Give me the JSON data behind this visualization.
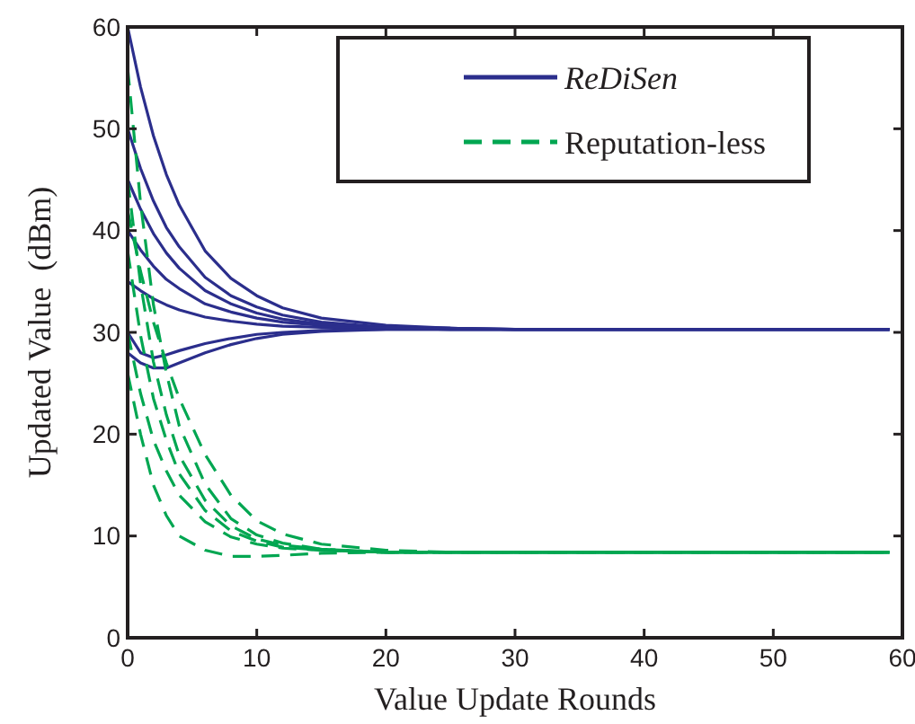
{
  "chart_data": {
    "type": "line",
    "xlabel": "Value Update Rounds",
    "ylabel": "Updated Value  (dBm)",
    "x": [
      0,
      1,
      2,
      3,
      4,
      6,
      8,
      10,
      12,
      15,
      20,
      25,
      30,
      59
    ],
    "xlim": [
      0,
      60
    ],
    "xticks": [
      0,
      10,
      20,
      30,
      40,
      50,
      60
    ],
    "ylim": [
      0,
      60
    ],
    "yticks": [
      0,
      10,
      20,
      30,
      40,
      50,
      60
    ],
    "grid": false,
    "legend": "top right",
    "marker": "none",
    "series": [
      {
        "name": "ReDiSen",
        "color": "#2b2e8c",
        "line_style": "solid",
        "values": [
          60,
          54.1,
          49.3,
          45.5,
          42.5,
          38.0,
          35.3,
          33.6,
          32.4,
          31.4,
          30.7,
          30.4,
          30.3,
          30.3
        ]
      },
      {
        "color": "#2b2e8c",
        "line_style": "solid",
        "values": [
          50,
          46.1,
          42.9,
          40.3,
          38.4,
          35.4,
          33.6,
          32.5,
          31.7,
          31.0,
          30.5,
          30.4,
          30.3,
          30.3
        ]
      },
      {
        "color": "#2b2e8c",
        "line_style": "solid",
        "values": [
          45,
          42.1,
          39.7,
          37.8,
          36.3,
          34.1,
          32.8,
          31.9,
          31.3,
          30.8,
          30.5,
          30.4,
          30.3,
          30.3
        ]
      },
      {
        "color": "#2b2e8c",
        "line_style": "solid",
        "values": [
          40,
          38.1,
          36.5,
          35.2,
          34.3,
          32.8,
          32.0,
          31.4,
          31.0,
          30.7,
          30.4,
          30.3,
          30.3,
          30.3
        ]
      },
      {
        "color": "#2b2e8c",
        "line_style": "solid",
        "values": [
          35,
          34.1,
          33.3,
          32.7,
          32.2,
          31.5,
          31.1,
          30.8,
          30.6,
          30.5,
          30.4,
          30.3,
          30.3,
          30.3
        ]
      },
      {
        "color": "#2b2e8c",
        "line_style": "solid",
        "values": [
          28,
          27,
          26.5,
          26.5,
          27,
          28,
          28.8,
          29.4,
          29.8,
          30.1,
          30.3,
          30.3,
          30.3,
          30.3
        ]
      },
      {
        "color": "#2b2e8c",
        "line_style": "solid",
        "values": [
          30,
          28,
          27.5,
          27.8,
          28.2,
          28.9,
          29.4,
          29.8,
          30.0,
          30.2,
          30.3,
          30.3,
          30.3,
          30.3
        ]
      },
      {
        "name": "Reputation-less",
        "color": "#00a651",
        "line_style": "dashed",
        "values": [
          56,
          42.7,
          32.7,
          26.0,
          20.8,
          15.1,
          11.7,
          10.1,
          9.3,
          8.7,
          8.4,
          8.4,
          8.4,
          8.4
        ]
      },
      {
        "color": "#00a651",
        "line_style": "dashed",
        "values": [
          45,
          34.8,
          27.1,
          21.9,
          17.9,
          13.5,
          11.0,
          9.7,
          9.1,
          8.7,
          8.4,
          8.4,
          8.4,
          8.4
        ]
      },
      {
        "color": "#00a651",
        "line_style": "dashed",
        "values": [
          38,
          29.7,
          23.5,
          19.4,
          16.1,
          12.5,
          10.5,
          9.5,
          8.9,
          8.6,
          8.4,
          8.4,
          8.4,
          8.4
        ]
      },
      {
        "color": "#00a651",
        "line_style": "dashed",
        "values": [
          30,
          24.0,
          19.4,
          16.4,
          14.0,
          11.4,
          9.9,
          9.2,
          8.8,
          8.6,
          8.4,
          8.4,
          8.4,
          8.4
        ]
      },
      {
        "color": "#00a651",
        "line_style": "dashed",
        "values": [
          26,
          20,
          15,
          12,
          10,
          8.6,
          8.0,
          8.0,
          8.1,
          8.3,
          8.4,
          8.4,
          8.4,
          8.4
        ]
      },
      {
        "color": "#00a651",
        "line_style": "dashed",
        "values": [
          42,
          36,
          31,
          27,
          23.5,
          18,
          14,
          11.5,
          10.2,
          9.2,
          8.6,
          8.4,
          8.4,
          8.4
        ]
      }
    ]
  }
}
